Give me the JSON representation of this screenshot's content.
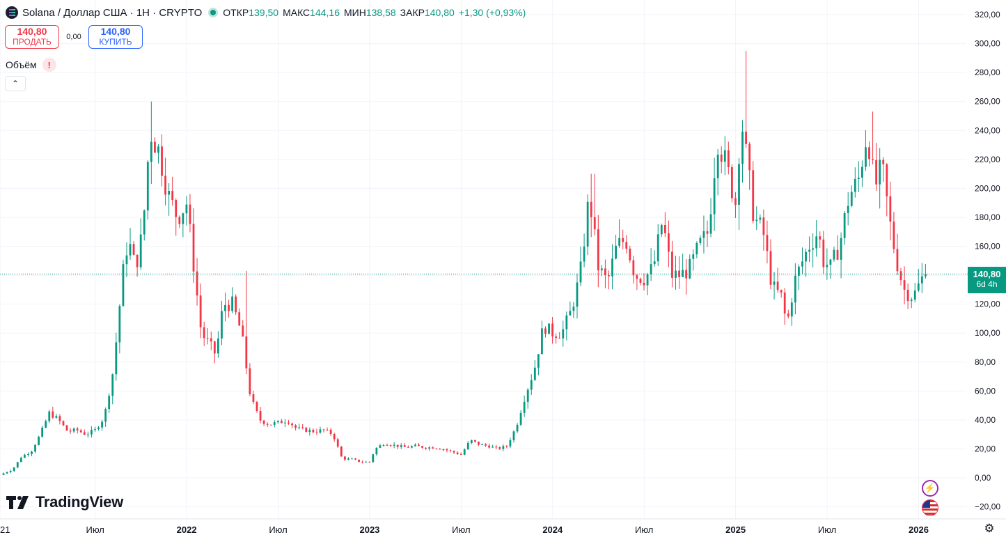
{
  "header": {
    "title": "Solana / Доллар США · 1Н · CRYPTO",
    "ohlc": [
      {
        "key": "ОТКР",
        "value": "139,50"
      },
      {
        "key": "МАКС",
        "value": "144,16"
      },
      {
        "key": "МИН",
        "value": "138,58"
      },
      {
        "key": "ЗАКР",
        "value": "140,80"
      }
    ],
    "change": "+1,30 (+0,93%)"
  },
  "trade": {
    "sell_price": "140,80",
    "sell_label": "ПРОДАТЬ",
    "spread": "0,00",
    "buy_price": "140,80",
    "buy_label": "КУПИТЬ"
  },
  "indicator": {
    "name": "Объём",
    "warning": "!"
  },
  "price_tag": {
    "price": "140,80",
    "countdown": "6d 4h"
  },
  "brand": "TradingView",
  "icons": {
    "symbol": "solana-logo-icon",
    "status": "live-dot-icon",
    "warning": "warning-icon",
    "collapse": "chevron-up-icon",
    "flash": "flash-icon",
    "flag": "us-flag-icon",
    "settings": "gear-icon"
  },
  "colors": {
    "up": "#089981",
    "down": "#f23645",
    "grid": "#f0f3fa",
    "text": "#131722"
  },
  "chart_data": {
    "type": "candlestick",
    "interval": "weekly",
    "x_axis_labels": [
      {
        "t": 2020.98,
        "label": "21"
      },
      {
        "t": 2021.5,
        "label": "Июл"
      },
      {
        "t": 2022.0,
        "label": "2022"
      },
      {
        "t": 2022.5,
        "label": "Июл"
      },
      {
        "t": 2023.0,
        "label": "2023"
      },
      {
        "t": 2023.5,
        "label": "Июл"
      },
      {
        "t": 2024.0,
        "label": "2024"
      },
      {
        "t": 2024.5,
        "label": "Июл"
      },
      {
        "t": 2025.0,
        "label": "2025"
      },
      {
        "t": 2025.5,
        "label": "Июл"
      },
      {
        "t": 2026.0,
        "label": "2026"
      }
    ],
    "y_ticks": [
      {
        "v": -20,
        "label": "−20,00"
      },
      {
        "v": 0,
        "label": "0,00"
      },
      {
        "v": 20,
        "label": "20,00"
      },
      {
        "v": 40,
        "label": "40,00"
      },
      {
        "v": 60,
        "label": "60,00"
      },
      {
        "v": 80,
        "label": "80,00"
      },
      {
        "v": 100,
        "label": "100,00"
      },
      {
        "v": 120,
        "label": "120,00"
      },
      {
        "v": 140,
        "label": "140,00"
      },
      {
        "v": 160,
        "label": "160,00"
      },
      {
        "v": 180,
        "label": "180,00"
      },
      {
        "v": 200,
        "label": "200,00"
      },
      {
        "v": 220,
        "label": "220,00"
      },
      {
        "v": 240,
        "label": "240,00"
      },
      {
        "v": 260,
        "label": "260,00"
      },
      {
        "v": 280,
        "label": "280,00"
      },
      {
        "v": 300,
        "label": "300,00"
      },
      {
        "v": 320,
        "label": "320,00"
      }
    ],
    "ylim": [
      -25,
      325
    ],
    "xlim": [
      2020.98,
      2026.15
    ],
    "last_price": 140.8,
    "close_path": [
      [
        2020.98,
        2
      ],
      [
        2021.05,
        6
      ],
      [
        2021.1,
        15
      ],
      [
        2021.15,
        18
      ],
      [
        2021.2,
        30
      ],
      [
        2021.25,
        45
      ],
      [
        2021.3,
        40
      ],
      [
        2021.35,
        32
      ],
      [
        2021.4,
        33
      ],
      [
        2021.45,
        30
      ],
      [
        2021.5,
        33
      ],
      [
        2021.55,
        42
      ],
      [
        2021.6,
        75
      ],
      [
        2021.65,
        140
      ],
      [
        2021.68,
        165
      ],
      [
        2021.72,
        145
      ],
      [
        2021.76,
        170
      ],
      [
        2021.8,
        240
      ],
      [
        2021.85,
        225
      ],
      [
        2021.9,
        195
      ],
      [
        2021.95,
        180
      ],
      [
        2022.0,
        190
      ],
      [
        2022.04,
        145
      ],
      [
        2022.08,
        100
      ],
      [
        2022.12,
        93
      ],
      [
        2022.16,
        85
      ],
      [
        2022.2,
        120
      ],
      [
        2022.25,
        120
      ],
      [
        2022.3,
        100
      ],
      [
        2022.35,
        55
      ],
      [
        2022.4,
        40
      ],
      [
        2022.45,
        37
      ],
      [
        2022.5,
        38
      ],
      [
        2022.55,
        40
      ],
      [
        2022.6,
        34
      ],
      [
        2022.65,
        33
      ],
      [
        2022.7,
        32
      ],
      [
        2022.75,
        33
      ],
      [
        2022.8,
        30
      ],
      [
        2022.85,
        13
      ],
      [
        2022.9,
        13
      ],
      [
        2022.95,
        11
      ],
      [
        2023.0,
        11
      ],
      [
        2023.03,
        20
      ],
      [
        2023.08,
        24
      ],
      [
        2023.15,
        22
      ],
      [
        2023.2,
        21
      ],
      [
        2023.25,
        22
      ],
      [
        2023.3,
        21
      ],
      [
        2023.35,
        21
      ],
      [
        2023.4,
        20
      ],
      [
        2023.45,
        18
      ],
      [
        2023.5,
        16
      ],
      [
        2023.55,
        26
      ],
      [
        2023.6,
        23
      ],
      [
        2023.65,
        22
      ],
      [
        2023.7,
        20
      ],
      [
        2023.75,
        22
      ],
      [
        2023.8,
        35
      ],
      [
        2023.85,
        57
      ],
      [
        2023.9,
        75
      ],
      [
        2023.95,
        105
      ],
      [
        2024.0,
        100
      ],
      [
        2024.05,
        100
      ],
      [
        2024.1,
        115
      ],
      [
        2024.15,
        140
      ],
      [
        2024.2,
        195
      ],
      [
        2024.25,
        145
      ],
      [
        2024.3,
        135
      ],
      [
        2024.35,
        160
      ],
      [
        2024.4,
        165
      ],
      [
        2024.45,
        140
      ],
      [
        2024.5,
        138
      ],
      [
        2024.55,
        145
      ],
      [
        2024.6,
        178
      ],
      [
        2024.65,
        140
      ],
      [
        2024.7,
        140
      ],
      [
        2024.75,
        145
      ],
      [
        2024.8,
        160
      ],
      [
        2024.85,
        170
      ],
      [
        2024.9,
        235
      ],
      [
        2024.95,
        215
      ],
      [
        2025.0,
        190
      ],
      [
        2025.03,
        250
      ],
      [
        2025.06,
        220
      ],
      [
        2025.1,
        180
      ],
      [
        2025.15,
        170
      ],
      [
        2025.2,
        132
      ],
      [
        2025.25,
        125
      ],
      [
        2025.28,
        105
      ],
      [
        2025.32,
        135
      ],
      [
        2025.35,
        145
      ],
      [
        2025.4,
        160
      ],
      [
        2025.45,
        170
      ],
      [
        2025.48,
        150
      ],
      [
        2025.52,
        145
      ],
      [
        2025.57,
        162
      ],
      [
        2025.62,
        195
      ],
      [
        2025.67,
        205
      ],
      [
        2025.72,
        240
      ],
      [
        2025.76,
        200
      ],
      [
        2025.8,
        215
      ],
      [
        2025.85,
        170
      ],
      [
        2025.88,
        150
      ],
      [
        2025.92,
        130
      ],
      [
        2025.97,
        125
      ],
      [
        2026.02,
        138
      ],
      [
        2026.04,
        140.8
      ]
    ],
    "peaks": [
      {
        "t": 2021.8,
        "high": 260
      },
      {
        "t": 2025.06,
        "high": 295
      },
      {
        "t": 2025.75,
        "high": 253
      },
      {
        "t": 2024.22,
        "high": 210
      },
      {
        "t": 2022.32,
        "high": 143
      }
    ]
  }
}
